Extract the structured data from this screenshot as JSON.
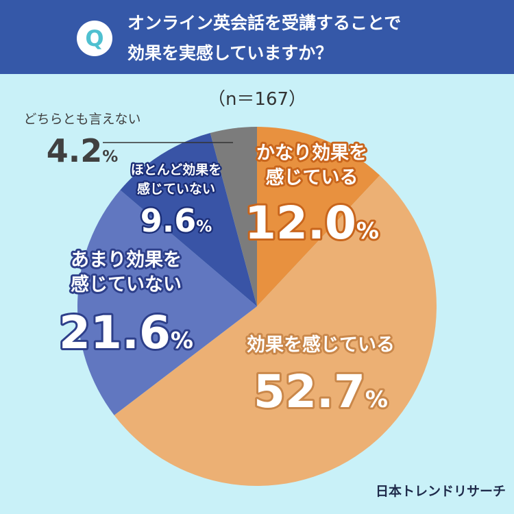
{
  "question": {
    "badge": "Q",
    "line1": "オンライン英会話を受講することで",
    "line2": "効果を実感していますか？"
  },
  "chart_data": {
    "type": "pie",
    "sample_note": "（n＝167）",
    "slices": [
      {
        "label_lines": [
          "かなり効果を",
          "感じている"
        ],
        "value": 12.0,
        "value_text": "12.0",
        "color": "#e8913f"
      },
      {
        "label_lines": [
          "効果を感じている"
        ],
        "value": 52.7,
        "value_text": "52.7",
        "color": "#ecb074"
      },
      {
        "label_lines": [
          "あまり効果を",
          "感じていない"
        ],
        "value": 21.6,
        "value_text": "21.6",
        "color": "#6177c0"
      },
      {
        "label_lines": [
          "ほとんど効果を",
          "感じていない"
        ],
        "value": 9.6,
        "value_text": "9.6",
        "color": "#3954a6"
      },
      {
        "label_lines": [
          "どちらとも言えない"
        ],
        "value": 4.2,
        "value_text": "4.2",
        "color": "#7c7c7c"
      }
    ],
    "percent_sign": "%"
  },
  "brand": "日本トレンドリサーチ"
}
